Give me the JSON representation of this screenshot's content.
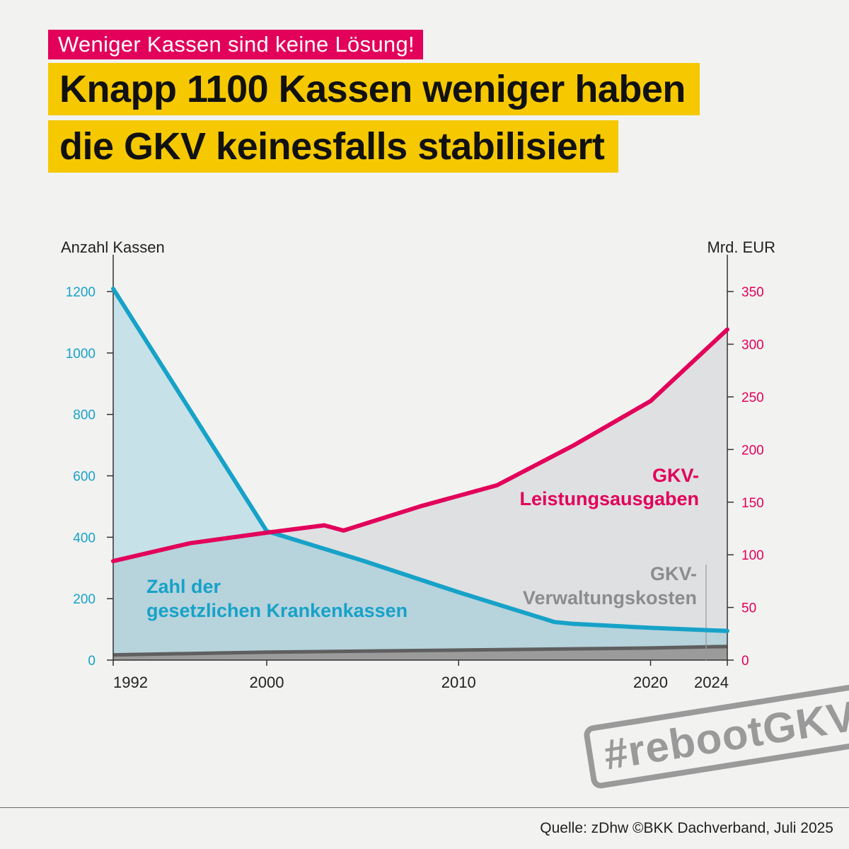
{
  "kicker": "Weniger Kassen sind keine Lösung!",
  "headline": {
    "line1": "Knapp 1100 Kassen weniger haben",
    "line2": "die GKV keinesfalls stabilisiert"
  },
  "footer": {
    "source": "Quelle: zDhw  ©BKK Dachverband, Juli 2025",
    "hashtag": "#rebootGKV"
  },
  "colors": {
    "blue": "#17a2c8",
    "red": "#e2005a",
    "yellow": "#f5c800",
    "grey": "#8c8c8c"
  },
  "chart_data": {
    "type": "line",
    "xlim": [
      1992,
      2024
    ],
    "x_ticks": [
      1992,
      2000,
      2010,
      2020,
      2024
    ],
    "left_axis": {
      "label": "Anzahl Kassen",
      "ylim": [
        0,
        1320
      ],
      "ticks": [
        0,
        200,
        400,
        600,
        800,
        1000,
        1200
      ]
    },
    "right_axis": {
      "label": "Mrd. EUR",
      "ylim": [
        0,
        385
      ],
      "ticks": [
        0,
        50,
        100,
        150,
        200,
        250,
        300,
        350
      ]
    },
    "series": [
      {
        "name": "Zahl der gesetzlichen Krankenkassen",
        "label_lines": [
          "Zahl der",
          "gesetzlichen Krankenkassen"
        ],
        "axis": "left",
        "style": "filled-line",
        "x": [
          1992,
          2000,
          2005,
          2010,
          2015,
          2016,
          2020,
          2024
        ],
        "y": [
          1209,
          420,
          324,
          221,
          124,
          118,
          105,
          95
        ]
      },
      {
        "name": "GKV-Leistungsausgaben",
        "label_lines": [
          "GKV-",
          "Leistungsausgaben"
        ],
        "axis": "right",
        "style": "filled-line",
        "x": [
          1992,
          1996,
          2000,
          2003,
          2004,
          2008,
          2012,
          2016,
          2020,
          2024
        ],
        "y": [
          94,
          111,
          121,
          128,
          123,
          146,
          166,
          204,
          246,
          314
        ]
      },
      {
        "name": "GKV-Verwaltungskosten",
        "label_lines": [
          "GKV-",
          "Verwaltungskosten"
        ],
        "axis": "right",
        "style": "filled-band",
        "x": [
          1992,
          2000,
          2010,
          2020,
          2024
        ],
        "y": [
          5,
          7.5,
          9.5,
          11.5,
          13
        ]
      }
    ]
  }
}
